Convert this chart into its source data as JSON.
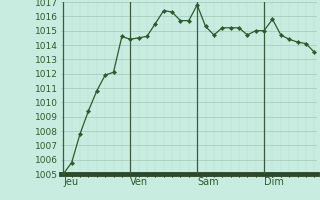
{
  "y_values": [
    1005.0,
    1005.8,
    1007.8,
    1009.4,
    1010.8,
    1011.9,
    1012.1,
    1014.6,
    1014.4,
    1014.5,
    1014.6,
    1015.5,
    1016.4,
    1016.3,
    1015.7,
    1015.7,
    1016.8,
    1015.3,
    1014.7,
    1015.2,
    1015.2,
    1015.2,
    1014.7,
    1015.0,
    1015.0,
    1015.8,
    1014.7,
    1014.4,
    1014.2,
    1014.1,
    1013.5
  ],
  "x_ticks_pos": [
    0,
    8,
    16,
    24
  ],
  "x_ticks_labels": [
    "Jeu",
    "Ven",
    "Sam",
    "Dim"
  ],
  "ylim": [
    1005,
    1017
  ],
  "yticks": [
    1005,
    1006,
    1007,
    1008,
    1009,
    1010,
    1011,
    1012,
    1013,
    1014,
    1015,
    1016,
    1017
  ],
  "line_color": "#2d5a2d",
  "marker_color": "#2d5a2d",
  "bg_color": "#c8ede0",
  "grid_major_color": "#a0c8b8",
  "grid_minor_color": "#b8ddd0",
  "vline_color": "#3a5a3a",
  "bottom_bar_color": "#2a4a2a",
  "tick_color": "#2d5a2d",
  "label_fontsize": 7,
  "tick_fontsize": 6.5
}
